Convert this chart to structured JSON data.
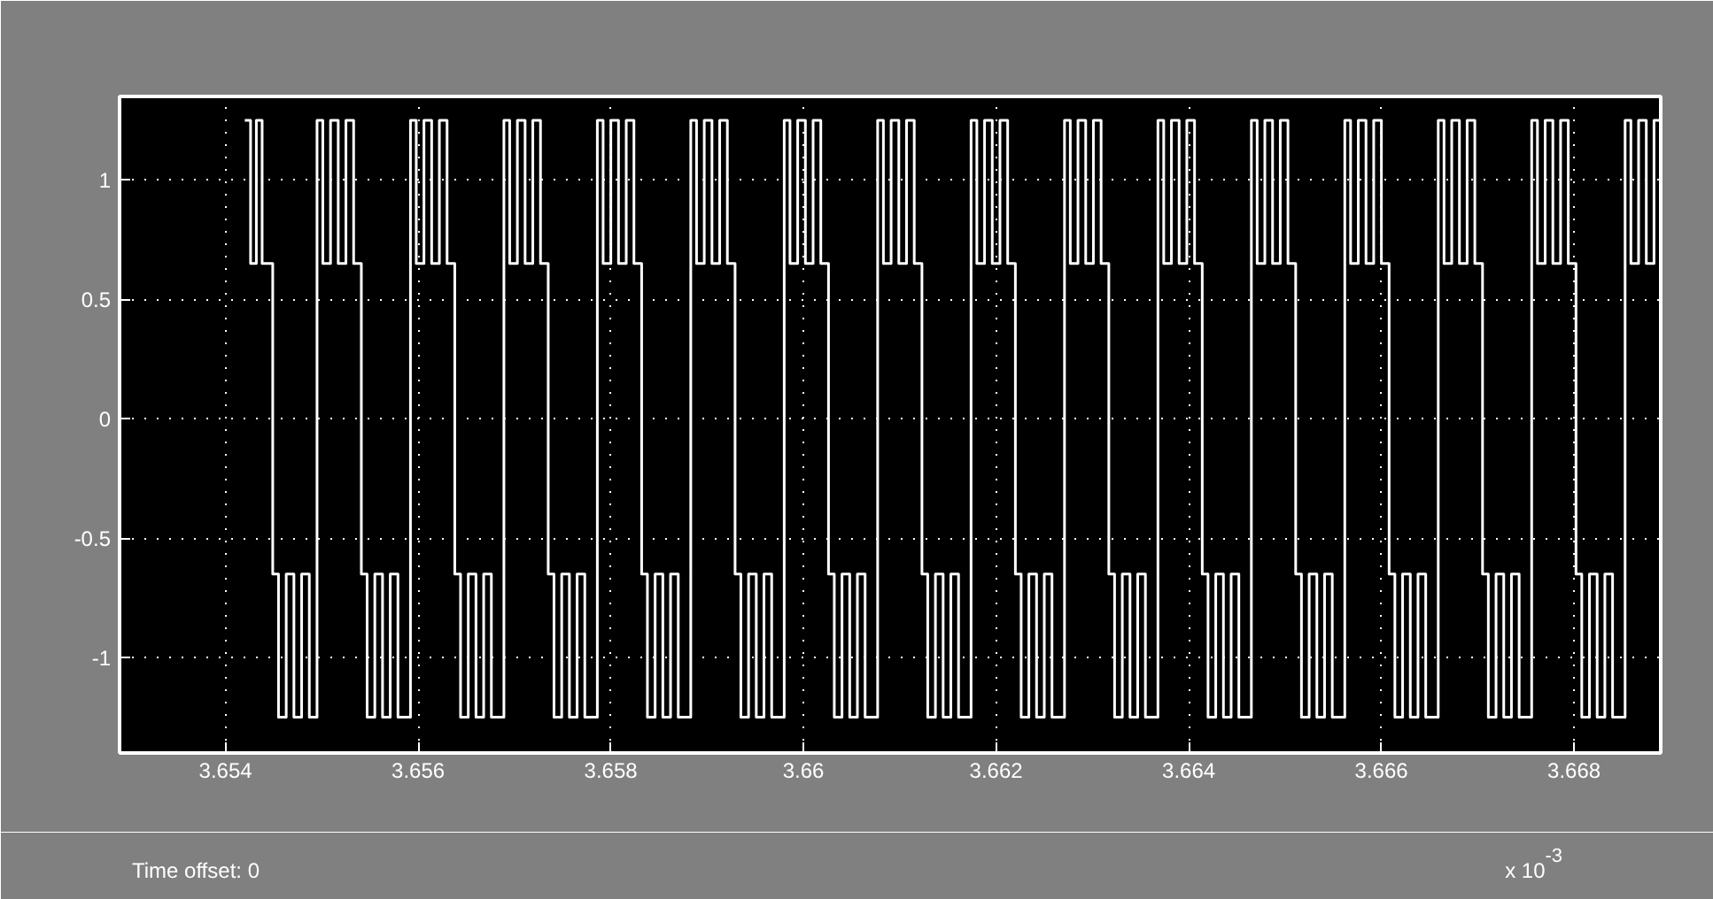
{
  "chart_data": {
    "type": "step",
    "color": "#ffffff",
    "line_style": "solid",
    "grid": true,
    "xlim": [
      3.6529,
      3.6689
    ],
    "ylim": [
      -1.4,
      1.35
    ],
    "xticks": [
      3.654,
      3.656,
      3.658,
      3.66,
      3.662,
      3.664,
      3.666,
      3.668
    ],
    "yticks": [
      -1,
      -0.5,
      0,
      0.5,
      1
    ],
    "annotations": [
      "Time offset:  0",
      "x 10$^{-3}$"
    ],
    "x": [
      3.6542,
      3.65426,
      3.65432,
      3.65438,
      3.65449,
      3.65455,
      3.65463,
      3.65471,
      3.65479,
      3.65487,
      3.65495,
      3.65501,
      3.65509,
      3.65517,
      3.65525,
      3.65533,
      3.65541,
      3.65547,
      3.65555,
      3.65563,
      3.65571,
      3.65579,
      3.65592,
      3.65598,
      3.65606,
      3.65614,
      3.65622,
      3.6563,
      3.65638,
      3.65644,
      3.65652,
      3.6566,
      3.65668,
      3.65676,
      3.65689,
      3.65695,
      3.65703,
      3.65711,
      3.65719,
      3.65727,
      3.65735,
      3.65741,
      3.65749,
      3.65757,
      3.65765,
      3.65773,
      3.65786,
      3.65792,
      3.658,
      3.65808,
      3.65816,
      3.65824,
      3.65832,
      3.65838,
      3.65846,
      3.65854,
      3.65862,
      3.6587,
      3.65883,
      3.65889,
      3.65897,
      3.65905,
      3.65913,
      3.65921,
      3.65929,
      3.65935,
      3.65943,
      3.65951,
      3.65959,
      3.65967,
      3.6598,
      3.65986,
      3.65994,
      3.66002,
      3.6601,
      3.66018,
      3.66026,
      3.66032,
      3.6604,
      3.66048,
      3.66056,
      3.66064,
      3.66077,
      3.66083,
      3.66091,
      3.66099,
      3.66107,
      3.66115,
      3.66123,
      3.66129,
      3.66137,
      3.66145,
      3.66153,
      3.66161,
      3.66174,
      3.6618,
      3.66188,
      3.66196,
      3.66204,
      3.66212,
      3.6622,
      3.66226,
      3.66234,
      3.66242,
      3.6625,
      3.66258,
      3.66271,
      3.66277,
      3.66285,
      3.66293,
      3.66301,
      3.66309,
      3.66317,
      3.66323,
      3.66331,
      3.66339,
      3.66347,
      3.66355,
      3.66368,
      3.66374,
      3.66382,
      3.6639,
      3.66398,
      3.66406,
      3.66414,
      3.6642,
      3.66428,
      3.66436,
      3.66444,
      3.66452,
      3.66465,
      3.66471,
      3.66479,
      3.66487,
      3.66495,
      3.66503,
      3.66511,
      3.66517,
      3.66525,
      3.66533,
      3.66541,
      3.66549,
      3.66562,
      3.66568,
      3.66576,
      3.66584,
      3.66592,
      3.666,
      3.66608,
      3.66614,
      3.66622,
      3.6663,
      3.66638,
      3.66646,
      3.66659,
      3.66665,
      3.66673,
      3.66681,
      3.66689,
      3.66697,
      3.66705,
      3.66711,
      3.66719,
      3.66727,
      3.66735,
      3.66743,
      3.66756,
      3.66762,
      3.6677,
      3.66778,
      3.66786,
      3.66794,
      3.66802,
      3.66808,
      3.66816,
      3.66824,
      3.66832,
      3.6684,
      3.66853,
      3.66859,
      3.66867,
      3.66875,
      3.66883,
      3.66889
    ],
    "values": [
      1.25,
      0.65,
      1.25,
      0.65,
      -0.65,
      -1.25,
      -0.65,
      -1.25,
      -0.65,
      -1.25,
      1.25,
      0.65,
      1.25,
      0.65,
      1.25,
      0.65,
      -0.65,
      -1.25,
      -0.65,
      -1.25,
      -0.65,
      -1.25,
      1.25,
      0.65,
      1.25,
      0.65,
      1.25,
      0.65,
      -0.65,
      -1.25,
      -0.65,
      -1.25,
      -0.65,
      -1.25,
      1.25,
      0.65,
      1.25,
      0.65,
      1.25,
      0.65,
      -0.65,
      -1.25,
      -0.65,
      -1.25,
      -0.65,
      -1.25,
      1.25,
      0.65,
      1.25,
      0.65,
      1.25,
      0.65,
      -0.65,
      -1.25,
      -0.65,
      -1.25,
      -0.65,
      -1.25,
      1.25,
      0.65,
      1.25,
      0.65,
      1.25,
      0.65,
      -0.65,
      -1.25,
      -0.65,
      -1.25,
      -0.65,
      -1.25,
      1.25,
      0.65,
      1.25,
      0.65,
      1.25,
      0.65,
      -0.65,
      -1.25,
      -0.65,
      -1.25,
      -0.65,
      -1.25,
      1.25,
      0.65,
      1.25,
      0.65,
      1.25,
      0.65,
      -0.65,
      -1.25,
      -0.65,
      -1.25,
      -0.65,
      -1.25,
      1.25,
      0.65,
      1.25,
      0.65,
      1.25,
      0.65,
      -0.65,
      -1.25,
      -0.65,
      -1.25,
      -0.65,
      -1.25,
      1.25,
      0.65,
      1.25,
      0.65,
      1.25,
      0.65,
      -0.65,
      -1.25,
      -0.65,
      -1.25,
      -0.65,
      -1.25,
      1.25,
      0.65,
      1.25,
      0.65,
      1.25,
      0.65,
      -0.65,
      -1.25,
      -0.65,
      -1.25,
      -0.65,
      -1.25,
      1.25,
      0.65,
      1.25,
      0.65,
      1.25,
      0.65,
      -0.65,
      -1.25,
      -0.65,
      -1.25,
      -0.65,
      -1.25,
      1.25,
      0.65,
      1.25,
      0.65,
      1.25,
      0.65,
      -0.65,
      -1.25,
      -0.65,
      -1.25,
      -0.65,
      -1.25,
      1.25,
      0.65,
      1.25,
      0.65,
      1.25,
      0.65,
      -0.65,
      -1.25,
      -0.65,
      -1.25,
      -0.65,
      -1.25,
      1.25,
      0.65,
      1.25,
      0.65,
      1.25,
      0.65,
      -0.65,
      -1.25,
      -0.65,
      -1.25,
      -0.65,
      -1.25,
      1.25,
      0.65,
      1.25,
      0.65,
      1.25,
      1.25
    ]
  }
}
